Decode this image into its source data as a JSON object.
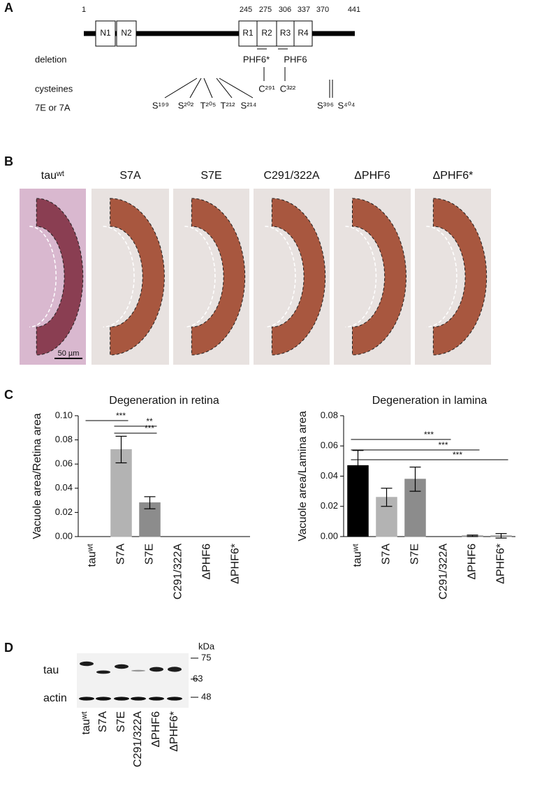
{
  "panel_a": {
    "label": "A",
    "positions": [
      "1",
      "245",
      "275",
      "306",
      "337",
      "370",
      "441"
    ],
    "domains": [
      "N1",
      "N2",
      "R1",
      "R2",
      "R3",
      "R4"
    ],
    "deletion_label": "deletion",
    "deletions": [
      "PHF6*",
      "PHF6"
    ],
    "cysteines_label": "cysteines",
    "cysteines": [
      "C²⁹¹",
      "C³²²"
    ],
    "sites_label": "7E or 7A",
    "sites": [
      "S¹⁹⁹",
      "S²⁰²",
      "T²⁰⁵",
      "T²¹²",
      "S²¹⁴",
      "S³⁹⁶",
      "S⁴⁰⁴"
    ]
  },
  "panel_b": {
    "label": "B",
    "titles": [
      "tauʷᵗ",
      "S7A",
      "S7E",
      "C291/322A",
      "ΔPHF6",
      "ΔPHF6*"
    ],
    "scale_bar": "50 µm"
  },
  "panel_c_label": "C",
  "chart_data": [
    {
      "type": "bar",
      "title": "Degeneration in retina",
      "y_label": "Vacuole area/Retina area",
      "categories": [
        "tauʷᵗ",
        "S7A",
        "S7E",
        "C291/322A",
        "ΔPHF6",
        "ΔPHF6*"
      ],
      "values": [
        0,
        0.072,
        0.028,
        0,
        0,
        0
      ],
      "errors": [
        0,
        0.011,
        0.005,
        0,
        0,
        0
      ],
      "colors": [
        "#000000",
        "#b3b3b3",
        "#8c8c8c",
        "#8c8c8c",
        "#8c8c8c",
        "#8c8c8c"
      ],
      "ylim": [
        0,
        0.1
      ],
      "yticks": [
        {
          "value": 0,
          "label": "0.00"
        },
        {
          "value": 0.02,
          "label": "0.02"
        },
        {
          "value": 0.04,
          "label": "0.04"
        },
        {
          "value": 0.06,
          "label": "0.06"
        },
        {
          "value": 0.08,
          "label": "0.08"
        },
        {
          "value": 0.1,
          "label": "0.10"
        }
      ],
      "annotations": [
        "***",
        "**",
        "***"
      ]
    },
    {
      "type": "bar",
      "title": "Degeneration in lamina",
      "y_label": "Vacuole area/Lamina area",
      "categories": [
        "tauʷᵗ",
        "S7A",
        "S7E",
        "C291/322A",
        "ΔPHF6",
        "ΔPHF6*"
      ],
      "values": [
        0.047,
        0.026,
        0.038,
        0,
        0.0005,
        0.0005
      ],
      "errors": [
        0.01,
        0.006,
        0.008,
        0,
        0.0005,
        0.0015
      ],
      "colors": [
        "#000000",
        "#b3b3b3",
        "#8c8c8c",
        "#8c8c8c",
        "#8c8c8c",
        "#8c8c8c"
      ],
      "ylim": [
        0,
        0.08
      ],
      "yticks": [
        {
          "value": 0,
          "label": "0.00"
        },
        {
          "value": 0.02,
          "label": "0.02"
        },
        {
          "value": 0.04,
          "label": "0.04"
        },
        {
          "value": 0.06,
          "label": "0.06"
        },
        {
          "value": 0.08,
          "label": "0.08"
        }
      ],
      "annotations": [
        "***",
        "***",
        "***"
      ]
    }
  ],
  "panel_d": {
    "label": "D",
    "unit": "kDa",
    "markers": [
      "75",
      "63",
      "48"
    ],
    "rows": [
      "tau",
      "actin"
    ],
    "lanes": [
      "tauʷᵗ",
      "S7A",
      "S7E",
      "C291/322A",
      "ΔPHF6",
      "ΔPHF6*"
    ]
  }
}
